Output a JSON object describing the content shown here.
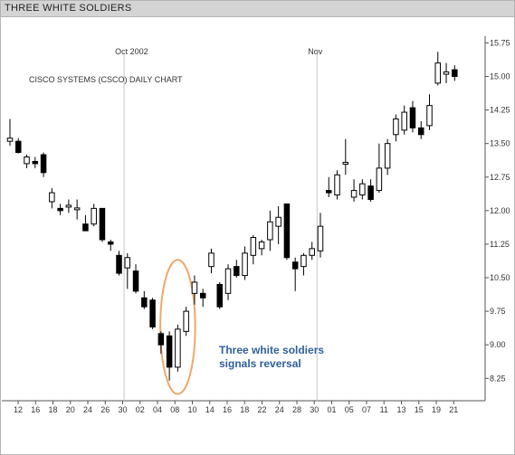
{
  "window": {
    "title": "THREE WHITE SOLDIERS"
  },
  "chart_data": {
    "type": "candlestick",
    "title": "CISCO SYSTEMS (CSCO) DAILY CHART",
    "month_markers": [
      {
        "label": "Oct 2002",
        "date_index": 14
      },
      {
        "label": "Nov",
        "date_index": 37
      }
    ],
    "annotation": {
      "lines": [
        "Three white soldiers",
        "signals reversal"
      ],
      "color": "#2f5f9a",
      "ellipse_color": "#f0a868",
      "highlight_range": [
        19,
        21
      ]
    },
    "ylim": [
      7.75,
      15.9
    ],
    "y_ticks": [
      "8.25",
      "9.00",
      "9.75",
      "10.50",
      "11.25",
      "12.00",
      "12.75",
      "13.50",
      "14.25",
      "15.00",
      "15.75"
    ],
    "x_ticks": [
      "12",
      "16",
      "18",
      "20",
      "24",
      "26",
      "30",
      "02",
      "04",
      "08",
      "10",
      "14",
      "16",
      "18",
      "22",
      "24",
      "28",
      "30",
      "01",
      "05",
      "07",
      "11",
      "13",
      "15",
      "19",
      "21"
    ],
    "colors": {
      "up_fill": "#ffffff",
      "down_fill": "#000000",
      "wick": "#000000",
      "marker_line": "#c8c8c8"
    },
    "candles": [
      {
        "d": 0,
        "o": 13.55,
        "h": 14.05,
        "l": 13.45,
        "c": 13.62
      },
      {
        "d": 1,
        "o": 13.55,
        "h": 13.62,
        "l": 13.28,
        "c": 13.3
      },
      {
        "d": 2,
        "o": 13.05,
        "h": 13.25,
        "l": 12.95,
        "c": 13.2
      },
      {
        "d": 3,
        "o": 13.1,
        "h": 13.2,
        "l": 12.95,
        "c": 13.05
      },
      {
        "d": 4,
        "o": 13.25,
        "h": 13.3,
        "l": 12.75,
        "c": 12.85
      },
      {
        "d": 5,
        "o": 12.2,
        "h": 12.5,
        "l": 12.05,
        "c": 12.4
      },
      {
        "d": 6,
        "o": 12.05,
        "h": 12.15,
        "l": 11.9,
        "c": 12.0
      },
      {
        "d": 7,
        "o": 12.1,
        "h": 12.25,
        "l": 11.95,
        "c": 12.12
      },
      {
        "d": 8,
        "o": 12.02,
        "h": 12.25,
        "l": 11.8,
        "c": 12.06
      },
      {
        "d": 9,
        "o": 11.7,
        "h": 11.9,
        "l": 11.55,
        "c": 11.55
      },
      {
        "d": 10,
        "o": 11.7,
        "h": 12.15,
        "l": 11.65,
        "c": 12.05
      },
      {
        "d": 11,
        "o": 12.05,
        "h": 12.05,
        "l": 11.3,
        "c": 11.35
      },
      {
        "d": 12,
        "o": 11.3,
        "h": 11.35,
        "l": 11.1,
        "c": 11.25
      },
      {
        "d": 13,
        "o": 11.0,
        "h": 11.1,
        "l": 10.55,
        "c": 10.6
      },
      {
        "d": 14,
        "o": 10.72,
        "h": 11.05,
        "l": 10.25,
        "c": 10.95
      },
      {
        "d": 15,
        "o": 10.65,
        "h": 10.8,
        "l": 10.15,
        "c": 10.2
      },
      {
        "d": 16,
        "o": 10.05,
        "h": 10.2,
        "l": 9.8,
        "c": 9.85
      },
      {
        "d": 17,
        "o": 10.0,
        "h": 10.05,
        "l": 9.35,
        "c": 9.4
      },
      {
        "d": 18,
        "o": 9.25,
        "h": 9.3,
        "l": 8.8,
        "c": 9.0
      },
      {
        "d": 19,
        "o": 9.2,
        "h": 9.3,
        "l": 8.2,
        "c": 8.5
      },
      {
        "d": 20,
        "o": 8.5,
        "h": 9.45,
        "l": 8.4,
        "c": 9.35
      },
      {
        "d": 21,
        "o": 9.3,
        "h": 9.85,
        "l": 9.2,
        "c": 9.75
      },
      {
        "d": 22,
        "o": 10.15,
        "h": 10.55,
        "l": 9.9,
        "c": 10.4
      },
      {
        "d": 23,
        "o": 10.15,
        "h": 10.25,
        "l": 9.85,
        "c": 10.05
      },
      {
        "d": 24,
        "o": 10.75,
        "h": 11.15,
        "l": 10.6,
        "c": 11.05
      },
      {
        "d": 25,
        "o": 10.35,
        "h": 10.4,
        "l": 9.8,
        "c": 9.85
      },
      {
        "d": 26,
        "o": 10.15,
        "h": 10.8,
        "l": 10.0,
        "c": 10.7
      },
      {
        "d": 27,
        "o": 10.75,
        "h": 10.9,
        "l": 10.5,
        "c": 10.55
      },
      {
        "d": 28,
        "o": 10.55,
        "h": 11.2,
        "l": 10.45,
        "c": 11.05
      },
      {
        "d": 29,
        "o": 11.0,
        "h": 11.45,
        "l": 10.8,
        "c": 11.4
      },
      {
        "d": 30,
        "o": 11.15,
        "h": 11.35,
        "l": 11.0,
        "c": 11.3
      },
      {
        "d": 31,
        "o": 11.35,
        "h": 12.0,
        "l": 11.1,
        "c": 11.75
      },
      {
        "d": 32,
        "o": 11.65,
        "h": 12.1,
        "l": 11.25,
        "c": 11.85
      },
      {
        "d": 33,
        "o": 12.15,
        "h": 12.15,
        "l": 10.9,
        "c": 10.95
      },
      {
        "d": 34,
        "o": 10.85,
        "h": 10.95,
        "l": 10.2,
        "c": 10.7
      },
      {
        "d": 35,
        "o": 10.75,
        "h": 11.05,
        "l": 10.55,
        "c": 11.0
      },
      {
        "d": 36,
        "o": 11.0,
        "h": 11.3,
        "l": 10.9,
        "c": 11.15
      },
      {
        "d": 37,
        "o": 11.1,
        "h": 11.95,
        "l": 10.95,
        "c": 11.65
      },
      {
        "d": 38,
        "o": 12.45,
        "h": 12.75,
        "l": 12.3,
        "c": 12.4
      },
      {
        "d": 39,
        "o": 12.35,
        "h": 12.9,
        "l": 12.25,
        "c": 12.8
      },
      {
        "d": 40,
        "o": 13.05,
        "h": 13.6,
        "l": 12.8,
        "c": 13.08
      },
      {
        "d": 41,
        "o": 12.3,
        "h": 12.7,
        "l": 12.2,
        "c": 12.45
      },
      {
        "d": 42,
        "o": 12.35,
        "h": 12.7,
        "l": 12.25,
        "c": 12.6
      },
      {
        "d": 43,
        "o": 12.55,
        "h": 12.7,
        "l": 12.2,
        "c": 12.25
      },
      {
        "d": 44,
        "o": 12.45,
        "h": 13.5,
        "l": 12.4,
        "c": 12.95
      },
      {
        "d": 45,
        "o": 12.95,
        "h": 13.6,
        "l": 12.8,
        "c": 13.5
      },
      {
        "d": 46,
        "o": 13.7,
        "h": 14.15,
        "l": 13.55,
        "c": 14.05
      },
      {
        "d": 47,
        "o": 13.8,
        "h": 14.35,
        "l": 13.7,
        "c": 14.2
      },
      {
        "d": 48,
        "o": 14.3,
        "h": 14.45,
        "l": 13.75,
        "c": 13.85
      },
      {
        "d": 49,
        "o": 13.85,
        "h": 14.0,
        "l": 13.6,
        "c": 13.7
      },
      {
        "d": 50,
        "o": 13.9,
        "h": 14.6,
        "l": 13.8,
        "c": 14.35
      },
      {
        "d": 51,
        "o": 14.85,
        "h": 15.55,
        "l": 14.8,
        "c": 15.3
      },
      {
        "d": 52,
        "o": 15.05,
        "h": 15.3,
        "l": 14.85,
        "c": 15.1
      },
      {
        "d": 53,
        "o": 15.15,
        "h": 15.25,
        "l": 14.9,
        "c": 15.0
      }
    ]
  }
}
